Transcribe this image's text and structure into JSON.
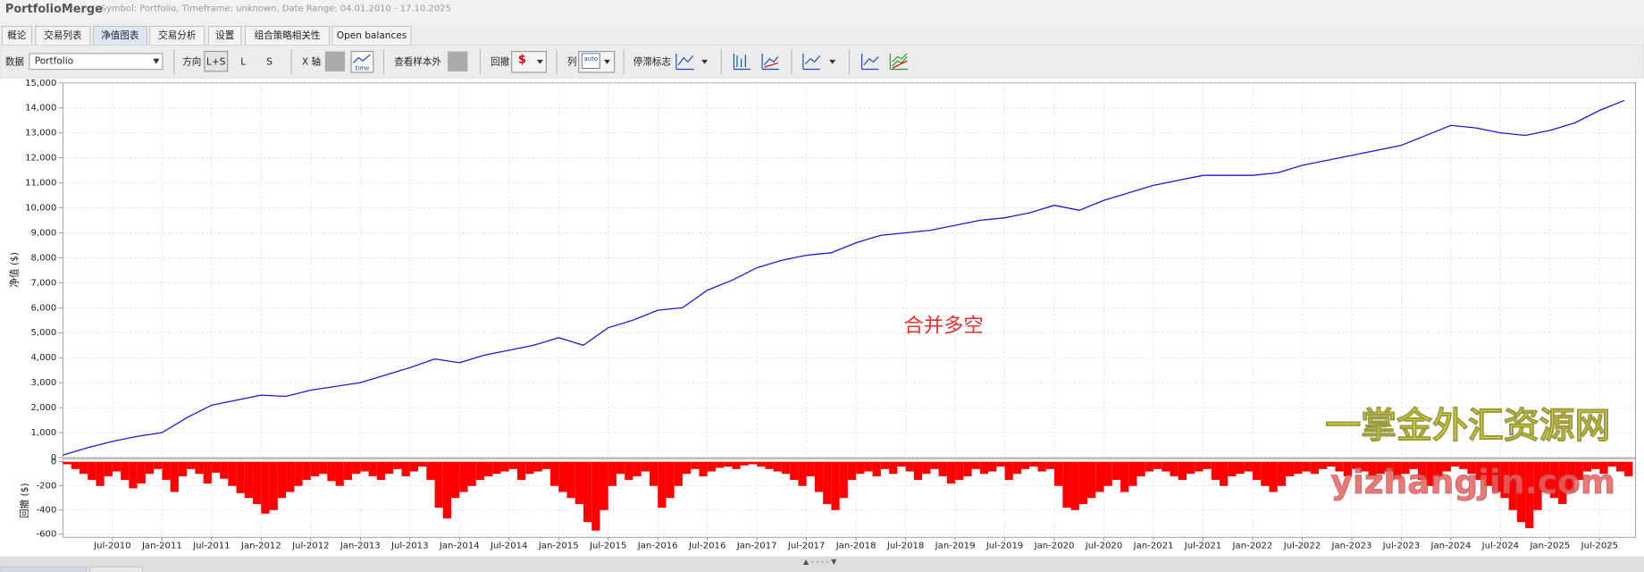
{
  "window": {
    "title": "PortfolioMerge",
    "info": "Symbol: Portfolio, Timeframe: unknown, Date Range: 04.01.2010 - 17.10.2025"
  },
  "tabs": [
    "概论",
    "交易列表",
    "净值图表",
    "交易分析",
    "设置",
    "组合策略相关性",
    "Open balances"
  ],
  "toolbar": {
    "data_label": "数据",
    "data_value": "Portfolio",
    "direction_label": "方向",
    "direction_options": [
      "L+S",
      "L",
      "S"
    ],
    "x_axis_label": "X 轴",
    "x_axis_icon": "time",
    "out_of_sample_label": "查看样本外",
    "drawdown_label": "回撤",
    "drawdown_icon": "$",
    "columns_label": "列",
    "columns_icon": "auto",
    "stagnation_label": "停滞标志"
  },
  "watermark": [
    "一掌金外汇资源网",
    "yizhangjin.com"
  ],
  "chart_data": [
    {
      "type": "line",
      "y_label": "净值 ($)",
      "annotation": "合并多空",
      "color": "#1a1ad6",
      "grid": true,
      "ylim": [
        0,
        15000
      ],
      "yticks": [
        0,
        {
          "value": 1000,
          "label": "1,000"
        },
        {
          "value": 2000,
          "label": "2,000"
        },
        {
          "value": 3000,
          "label": "3,000"
        },
        {
          "value": 4000,
          "label": "4,000"
        },
        {
          "value": 5000,
          "label": "5,000"
        },
        {
          "value": 6000,
          "label": "6,000"
        },
        {
          "value": 7000,
          "label": "7,000"
        },
        {
          "value": 8000,
          "label": "8,000"
        },
        {
          "value": 9000,
          "label": "9,000"
        },
        {
          "value": 10000,
          "label": "10,000"
        },
        {
          "value": 11000,
          "label": "11,000"
        },
        {
          "value": 12000,
          "label": "12,000"
        },
        {
          "value": 13000,
          "label": "13,000"
        },
        {
          "value": 14000,
          "label": "14,000"
        },
        {
          "value": 15000,
          "label": "15,000"
        }
      ],
      "x": [
        "Jan-2010",
        "Apr-2010",
        "Jul-2010",
        "Oct-2010",
        "Jan-2011",
        "Apr-2011",
        "Jul-2011",
        "Oct-2011",
        "Jan-2012",
        "Apr-2012",
        "Jul-2012",
        "Oct-2012",
        "Jan-2013",
        "Apr-2013",
        "Jul-2013",
        "Oct-2013",
        "Jan-2014",
        "Apr-2014",
        "Jul-2014",
        "Oct-2014",
        "Jan-2015",
        "Apr-2015",
        "Jul-2015",
        "Oct-2015",
        "Jan-2016",
        "Apr-2016",
        "Jul-2016",
        "Oct-2016",
        "Jan-2017",
        "Apr-2017",
        "Jul-2017",
        "Oct-2017",
        "Jan-2018",
        "Apr-2018",
        "Jul-2018",
        "Oct-2018",
        "Jan-2019",
        "Apr-2019",
        "Jul-2019",
        "Oct-2019",
        "Jan-2020",
        "Apr-2020",
        "Jul-2020",
        "Oct-2020",
        "Jan-2021",
        "Apr-2021",
        "Jul-2021",
        "Oct-2021",
        "Jan-2022",
        "Apr-2022",
        "Jul-2022",
        "Oct-2022",
        "Jan-2023",
        "Apr-2023",
        "Jul-2023",
        "Oct-2023",
        "Jan-2024",
        "Apr-2024",
        "Jul-2024",
        "Oct-2024",
        "Jan-2025",
        "Apr-2025",
        "Jul-2025",
        "Oct-2025"
      ],
      "values": [
        100,
        400,
        650,
        850,
        1000,
        1600,
        2100,
        2300,
        2500,
        2450,
        2700,
        2850,
        3000,
        3300,
        3600,
        3950,
        3800,
        4100,
        4300,
        4500,
        4800,
        4500,
        5200,
        5500,
        5900,
        6000,
        6700,
        7100,
        7600,
        7900,
        8100,
        8200,
        8600,
        8900,
        9000,
        9100,
        9300,
        9500,
        9600,
        9800,
        10100,
        9900,
        10300,
        10600,
        10900,
        11100,
        11300,
        11300,
        11300,
        11400,
        11700,
        11900,
        12100,
        12300,
        12500,
        12900,
        13300,
        13200,
        13000,
        12900,
        13100,
        13400,
        13900,
        14300
      ]
    },
    {
      "type": "bar",
      "y_label": "回撤 ($)",
      "color": "#ff0000",
      "grid": true,
      "ylim": [
        -600,
        0
      ],
      "yticks": [
        -600,
        -400,
        -200,
        0
      ],
      "xticks": [
        "Jul-2010",
        "Jan-2011",
        "Jul-2011",
        "Jan-2012",
        "Jul-2012",
        "Jan-2013",
        "Jul-2013",
        "Jan-2014",
        "Jul-2014",
        "Jan-2015",
        "Jul-2015",
        "Jan-2016",
        "Jul-2016",
        "Jan-2017",
        "Jul-2017",
        "Jan-2018",
        "Jul-2018",
        "Jan-2019",
        "Jul-2019",
        "Jan-2020",
        "Jul-2020",
        "Jan-2021",
        "Jul-2021",
        "Jan-2022",
        "Jul-2022",
        "Jan-2023",
        "Jul-2023",
        "Jan-2024",
        "Jul-2024",
        "Jan-2025",
        "Jul-2025"
      ],
      "x": [
        "Jan-2010",
        "Feb-2010",
        "Mar-2010",
        "Apr-2010",
        "May-2010",
        "Jun-2010",
        "Jul-2010",
        "Aug-2010",
        "Sep-2010",
        "Oct-2010",
        "Nov-2010",
        "Dec-2010",
        "Jan-2011",
        "Feb-2011",
        "Mar-2011",
        "Apr-2011",
        "May-2011",
        "Jun-2011",
        "Jul-2011",
        "Aug-2011",
        "Sep-2011",
        "Oct-2011",
        "Nov-2011",
        "Dec-2011",
        "Jan-2012",
        "Feb-2012",
        "Mar-2012",
        "Apr-2012",
        "May-2012",
        "Jun-2012",
        "Jul-2012",
        "Aug-2012",
        "Sep-2012",
        "Oct-2012",
        "Nov-2012",
        "Dec-2012",
        "Jan-2013",
        "Feb-2013",
        "Mar-2013",
        "Apr-2013",
        "May-2013",
        "Jun-2013",
        "Jul-2013",
        "Aug-2013",
        "Sep-2013",
        "Oct-2013",
        "Nov-2013",
        "Dec-2013",
        "Jan-2014",
        "Feb-2014",
        "Mar-2014",
        "Apr-2014",
        "May-2014",
        "Jun-2014",
        "Jul-2014",
        "Aug-2014",
        "Sep-2014",
        "Oct-2014",
        "Nov-2014",
        "Dec-2014",
        "Jan-2015",
        "Feb-2015",
        "Mar-2015",
        "Apr-2015",
        "May-2015",
        "Jun-2015",
        "Jul-2015",
        "Aug-2015",
        "Sep-2015",
        "Oct-2015",
        "Nov-2015",
        "Dec-2015",
        "Jan-2016",
        "Feb-2016",
        "Mar-2016",
        "Apr-2016",
        "May-2016",
        "Jun-2016",
        "Jul-2016",
        "Aug-2016",
        "Sep-2016",
        "Oct-2016",
        "Nov-2016",
        "Dec-2016",
        "Jan-2017",
        "Feb-2017",
        "Mar-2017",
        "Apr-2017",
        "May-2017",
        "Jun-2017",
        "Jul-2017",
        "Aug-2017",
        "Sep-2017",
        "Oct-2017",
        "Nov-2017",
        "Dec-2017",
        "Jan-2018",
        "Feb-2018",
        "Mar-2018",
        "Apr-2018",
        "May-2018",
        "Jun-2018",
        "Jul-2018",
        "Aug-2018",
        "Sep-2018",
        "Oct-2018",
        "Nov-2018",
        "Dec-2018",
        "Jan-2019",
        "Feb-2019",
        "Mar-2019",
        "Apr-2019",
        "May-2019",
        "Jun-2019",
        "Jul-2019",
        "Aug-2019",
        "Sep-2019",
        "Oct-2019",
        "Nov-2019",
        "Dec-2019",
        "Jan-2020",
        "Feb-2020",
        "Mar-2020",
        "Apr-2020",
        "May-2020",
        "Jun-2020",
        "Jul-2020",
        "Aug-2020",
        "Sep-2020",
        "Oct-2020",
        "Nov-2020",
        "Dec-2020",
        "Jan-2021",
        "Feb-2021",
        "Mar-2021",
        "Apr-2021",
        "May-2021",
        "Jun-2021",
        "Jul-2021",
        "Aug-2021",
        "Sep-2021",
        "Oct-2021",
        "Nov-2021",
        "Dec-2021",
        "Jan-2022",
        "Feb-2022",
        "Mar-2022",
        "Apr-2022",
        "May-2022",
        "Jun-2022",
        "Jul-2022",
        "Aug-2022",
        "Sep-2022",
        "Oct-2022",
        "Nov-2022",
        "Dec-2022",
        "Jan-2023",
        "Feb-2023",
        "Mar-2023",
        "Apr-2023",
        "May-2023",
        "Jun-2023",
        "Jul-2023",
        "Aug-2023",
        "Sep-2023",
        "Oct-2023",
        "Nov-2023",
        "Dec-2023",
        "Jan-2024",
        "Feb-2024",
        "Mar-2024",
        "Apr-2024",
        "May-2024",
        "Jun-2024",
        "Jul-2024",
        "Aug-2024",
        "Sep-2024",
        "Oct-2024",
        "Nov-2024",
        "Dec-2024",
        "Jan-2025",
        "Feb-2025",
        "Mar-2025",
        "Apr-2025",
        "May-2025",
        "Jun-2025",
        "Jul-2025",
        "Aug-2025",
        "Sep-2025",
        "Oct-2025"
      ],
      "values": [
        -20,
        -60,
        -100,
        -150,
        -200,
        -120,
        -80,
        -150,
        -220,
        -180,
        -100,
        -60,
        -150,
        -250,
        -120,
        -60,
        -100,
        -180,
        -90,
        -140,
        -200,
        -260,
        -300,
        -350,
        -430,
        -400,
        -300,
        -250,
        -200,
        -150,
        -120,
        -100,
        -160,
        -200,
        -150,
        -100,
        -80,
        -120,
        -150,
        -100,
        -60,
        -120,
        -80,
        -40,
        -150,
        -380,
        -470,
        -300,
        -250,
        -200,
        -150,
        -120,
        -100,
        -80,
        -60,
        -150,
        -100,
        -80,
        -60,
        -200,
        -250,
        -300,
        -350,
        -500,
        -570,
        -400,
        -200,
        -100,
        -150,
        -120,
        -80,
        -200,
        -380,
        -300,
        -200,
        -100,
        -60,
        -120,
        -80,
        -50,
        -40,
        -60,
        -30,
        -20,
        -40,
        -60,
        -80,
        -100,
        -150,
        -200,
        -120,
        -250,
        -350,
        -400,
        -300,
        -150,
        -100,
        -80,
        -120,
        -60,
        -100,
        -40,
        -80,
        -150,
        -100,
        -60,
        -120,
        -180,
        -150,
        -120,
        -60,
        -100,
        -80,
        -40,
        -150,
        -100,
        -60,
        -40,
        -80,
        -60,
        -200,
        -380,
        -400,
        -350,
        -300,
        -250,
        -200,
        -150,
        -250,
        -200,
        -120,
        -80,
        -60,
        -80,
        -120,
        -150,
        -100,
        -80,
        -60,
        -150,
        -200,
        -120,
        -100,
        -80,
        -150,
        -200,
        -250,
        -200,
        -120,
        -100,
        -80,
        -100,
        -60,
        -40,
        -80,
        -120,
        -60,
        -80,
        -120,
        -100,
        -80,
        -140,
        -100,
        -60,
        -150,
        -200,
        -120,
        -80,
        -40,
        -60,
        -100,
        -150,
        -200,
        -250,
        -300,
        -400,
        -500,
        -550,
        -400,
        -250,
        -300,
        -350,
        -250,
        -150,
        -80,
        -60,
        -100,
        -40,
        -80,
        -120
      ]
    }
  ],
  "footer": {
    "splitter": "▲ - - - - ▼"
  }
}
